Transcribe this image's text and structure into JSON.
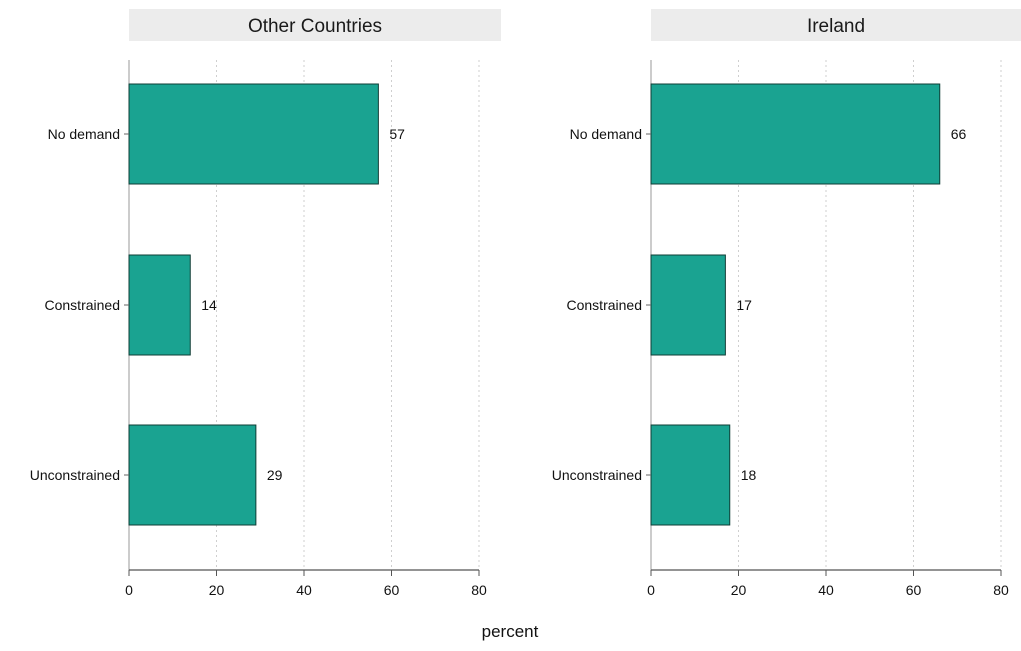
{
  "chart_data": {
    "type": "bar",
    "orientation": "horizontal",
    "categories": [
      "No demand",
      "Constrained",
      "Unconstrained"
    ],
    "xlabel": "percent",
    "xlim": [
      0,
      80
    ],
    "xticks": [
      0,
      20,
      40,
      60,
      80
    ],
    "grid": true,
    "bar_color": "#1aa391",
    "bar_edge_color": "#0f3d35",
    "panel_header_color": "#ececec",
    "panels": [
      {
        "name": "Other Countries",
        "values": [
          57,
          14,
          29
        ],
        "value_labels": [
          "57",
          "14",
          "29"
        ]
      },
      {
        "name": "Ireland",
        "values": [
          66,
          17,
          18
        ],
        "value_labels": [
          "66",
          "17",
          "18"
        ]
      }
    ]
  }
}
